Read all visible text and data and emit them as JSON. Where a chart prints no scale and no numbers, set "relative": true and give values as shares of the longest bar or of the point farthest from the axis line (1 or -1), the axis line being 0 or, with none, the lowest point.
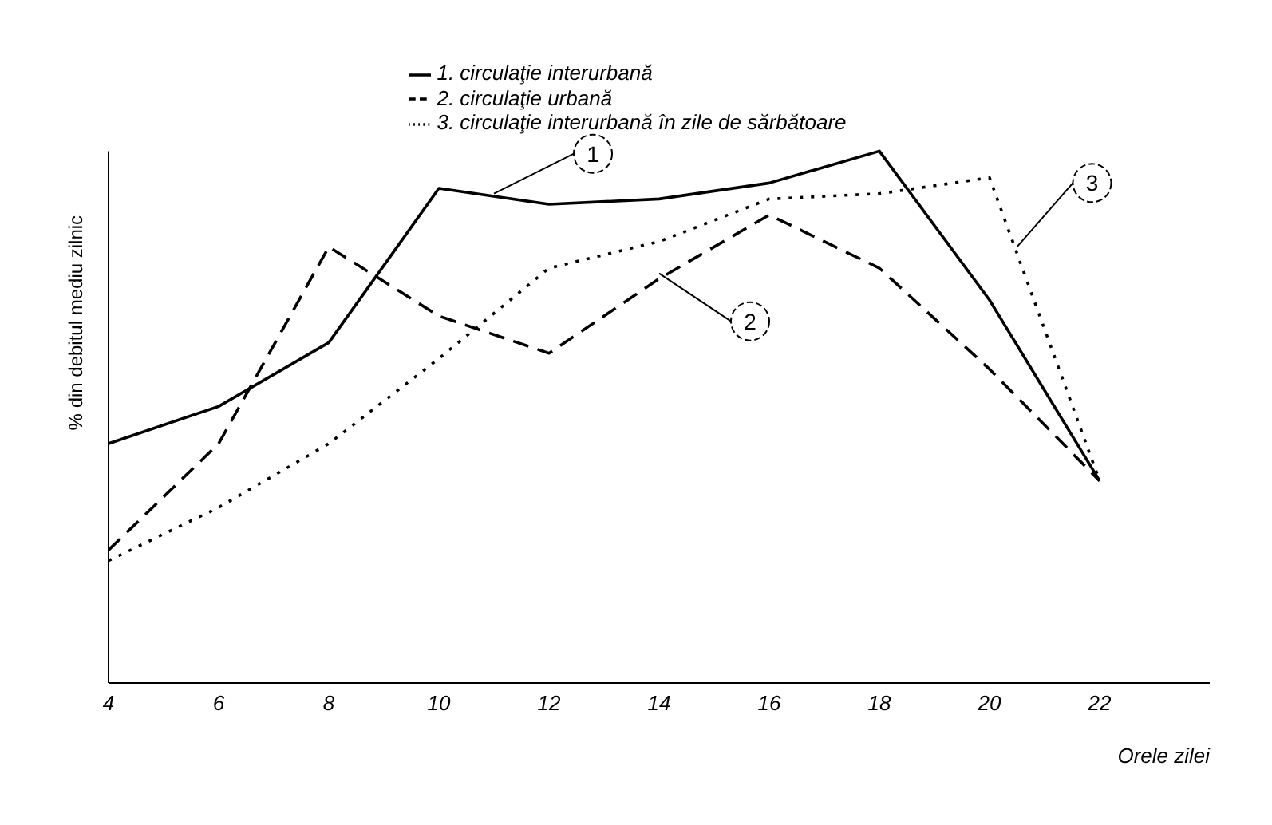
{
  "chart_data": {
    "type": "line",
    "relative": true,
    "xlabel": "Orele zilei",
    "ylabel": "% din debitul mediu zilnic",
    "x": [
      4,
      6,
      8,
      10,
      12,
      14,
      16,
      18,
      20,
      22
    ],
    "xlim": [
      4,
      24
    ],
    "xticks": [
      4,
      6,
      8,
      10,
      12,
      14,
      16,
      18,
      20,
      22
    ],
    "series": [
      {
        "name": "1. circulaţie interurbană",
        "color": "#000000",
        "line_style": "solid",
        "values": [
          0.45,
          0.52,
          0.64,
          0.93,
          0.9,
          0.91,
          0.94,
          1,
          0.72,
          0.38
        ]
      },
      {
        "name": "2. circulaţie urbană",
        "color": "#000000",
        "line_style": "dashed",
        "values": [
          0.25,
          0.45,
          0.82,
          0.69,
          0.62,
          0.76,
          0.88,
          0.78,
          0.59,
          0.38
        ]
      },
      {
        "name": "3. circulaţie interurbană în zile de sărbătoare",
        "color": "#000000",
        "line_style": "dotted",
        "values": [
          0.23,
          0.33,
          0.45,
          0.61,
          0.78,
          0.83,
          0.91,
          0.92,
          0.95,
          0.38
        ]
      }
    ],
    "annotations": [
      {
        "text": "1",
        "x": 11,
        "y": 0.92
      },
      {
        "text": "2",
        "x": 14,
        "y": 0.77
      },
      {
        "text": "3",
        "x": 20.5,
        "y": 0.82
      }
    ],
    "legend": "top",
    "marker": "none",
    "grid": false
  }
}
